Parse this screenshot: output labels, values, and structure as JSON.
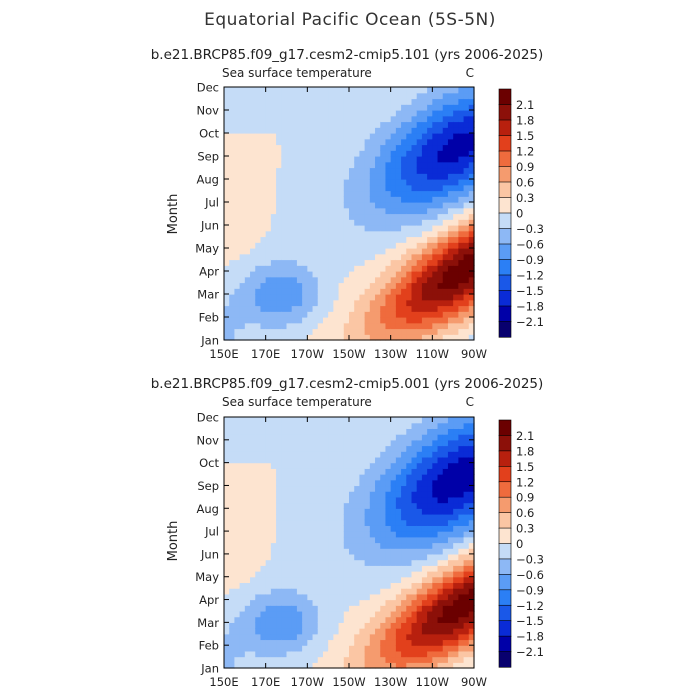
{
  "main_title": "Equatorial Pacific Ocean (5S-5N)",
  "chart_data": [
    {
      "type": "heatmap",
      "title": "b.e21.BRCP85.f09_g17.cesm2-cmip5.101 (yrs 2006-2025)",
      "subtitle_left": "Sea surface temperature",
      "subtitle_right": "C",
      "xlabel": "",
      "ylabel": "Month",
      "xticks": [
        "150E",
        "170E",
        "170W",
        "150W",
        "130W",
        "110W",
        "90W"
      ],
      "yticks": [
        "Jan",
        "Feb",
        "Mar",
        "Apr",
        "May",
        "Jun",
        "Jul",
        "Aug",
        "Sep",
        "Oct",
        "Nov",
        "Dec"
      ],
      "xlim": [
        150,
        270
      ],
      "colorbar_ticks": [
        "2.1",
        "1.8",
        "1.5",
        "1.2",
        "0.9",
        "0.6",
        "0.3",
        "0",
        "-0.3",
        "-0.6",
        "-0.9",
        "-1.2",
        "-1.5",
        "-1.8",
        "-2.1"
      ],
      "contour_levels": [
        -2.1,
        -1.8,
        -1.5,
        -1.2,
        -0.9,
        -0.6,
        -0.3,
        0,
        0.3,
        0.6,
        0.9,
        1.2,
        1.5,
        1.8,
        2.1
      ],
      "field": {
        "warm_peak": 2.3,
        "cold_peak": -1.9,
        "warm_center_month": 3.9,
        "cold_center_month": 9.4,
        "cold_spread": 2.3
      }
    },
    {
      "type": "heatmap",
      "title": "b.e21.BRCP85.f09_g17.cesm2-cmip5.001 (yrs 2006-2025)",
      "subtitle_left": "Sea surface temperature",
      "subtitle_right": "C",
      "xlabel": "",
      "ylabel": "Month",
      "xticks": [
        "150E",
        "170E",
        "170W",
        "150W",
        "130W",
        "110W",
        "90W"
      ],
      "yticks": [
        "Jan",
        "Feb",
        "Mar",
        "Apr",
        "May",
        "Jun",
        "Jul",
        "Aug",
        "Sep",
        "Oct",
        "Nov",
        "Dec"
      ],
      "xlim": [
        150,
        270
      ],
      "colorbar_ticks": [
        "2.1",
        "1.8",
        "1.5",
        "1.2",
        "0.9",
        "0.6",
        "0.3",
        "0",
        "-0.3",
        "-0.6",
        "-0.9",
        "-1.2",
        "-1.5",
        "-1.8",
        "-2.1"
      ],
      "contour_levels": [
        -2.1,
        -1.8,
        -1.5,
        -1.2,
        -0.9,
        -0.6,
        -0.3,
        0,
        0.3,
        0.6,
        0.9,
        1.2,
        1.5,
        1.8,
        2.1
      ],
      "field": {
        "warm_peak": 2.3,
        "cold_peak": -2.0,
        "warm_center_month": 3.6,
        "cold_center_month": 9.3,
        "cold_spread": 2.5
      }
    }
  ],
  "colors": {
    "palette": [
      "#08006e",
      "#0000a8",
      "#0a2bd6",
      "#1a58e8",
      "#2b7ff5",
      "#5b9cf5",
      "#8db8f5",
      "#c5dcf7",
      "#fde4d0",
      "#fbc6a4",
      "#f59b6e",
      "#ef6b3d",
      "#e2401c",
      "#b8200e",
      "#8c1009",
      "#6b0000"
    ]
  }
}
